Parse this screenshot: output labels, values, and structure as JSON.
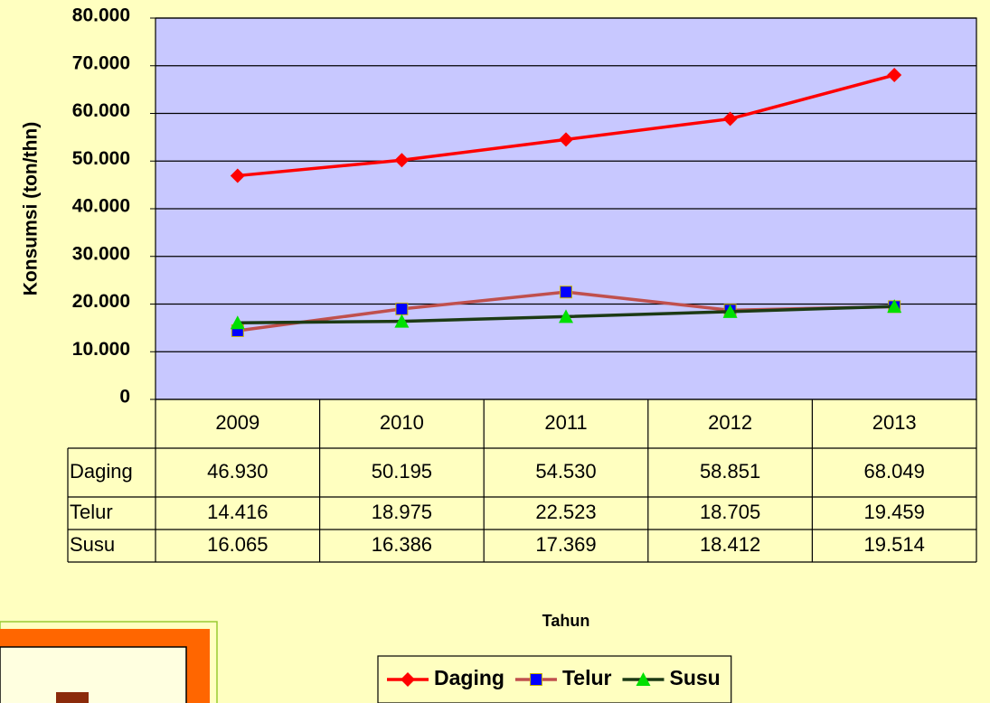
{
  "chart_data": {
    "type": "line",
    "y_label": "Konsumsi (ton/thn)",
    "x_label": "Tahun",
    "categories": [
      "2009",
      "2010",
      "2011",
      "2012",
      "2013"
    ],
    "series": [
      {
        "name": "Daging",
        "color": "#ff0000",
        "marker": "diamond",
        "marker_color": "#ff0000",
        "values": [
          46930,
          50195,
          54530,
          58851,
          68049
        ],
        "value_labels": [
          "46.930",
          "50.195",
          "54.530",
          "58.851",
          "68.049"
        ]
      },
      {
        "name": "Telur",
        "color": "#c0504d",
        "marker": "square",
        "marker_color": "#0000ff",
        "values": [
          14416,
          18975,
          22523,
          18705,
          19459
        ],
        "value_labels": [
          "14.416",
          "18.975",
          "22.523",
          "18.705",
          "19.459"
        ]
      },
      {
        "name": "Susu",
        "color": "#1c3a14",
        "marker": "triangle",
        "marker_color": "#00e000",
        "values": [
          16065,
          16386,
          17369,
          18412,
          19514
        ],
        "value_labels": [
          "16.065",
          "16.386",
          "17.369",
          "18.412",
          "19.514"
        ]
      }
    ],
    "ylim": [
      0,
      80000
    ],
    "yticks": [
      0,
      {
        "value": 10000,
        "label": "10.000"
      },
      {
        "value": 20000,
        "label": "20.000"
      },
      {
        "value": 30000,
        "label": "30.000"
      },
      {
        "value": 40000,
        "label": "40.000"
      },
      {
        "value": 50000,
        "label": "50.000"
      },
      {
        "value": 60000,
        "label": "60.000"
      },
      {
        "value": 70000,
        "label": "70.000"
      },
      {
        "value": 80000,
        "label": "80.000"
      }
    ],
    "grid": true,
    "legend": "bottom",
    "plot_background": "#c8c8ff"
  }
}
